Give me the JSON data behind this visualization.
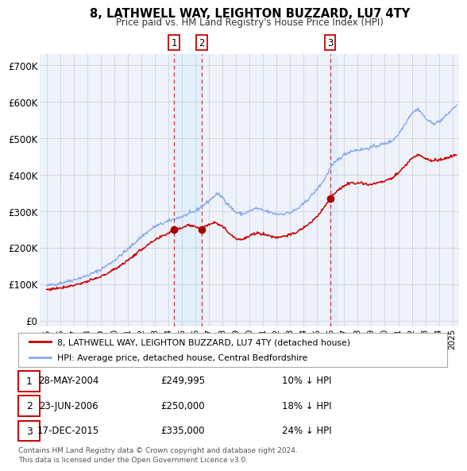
{
  "title": "8, LATHWELL WAY, LEIGHTON BUZZARD, LU7 4TY",
  "subtitle": "Price paid vs. HM Land Registry's House Price Index (HPI)",
  "transactions": [
    {
      "label": "1",
      "date_str": "28-MAY-2004",
      "date_x": 2004.41,
      "price": 249995,
      "hpi_pct": "10% ↓ HPI"
    },
    {
      "label": "2",
      "date_str": "23-JUN-2006",
      "date_x": 2006.48,
      "price": 250000,
      "hpi_pct": "18% ↓ HPI"
    },
    {
      "label": "3",
      "date_str": "17-DEC-2015",
      "date_x": 2015.96,
      "price": 335000,
      "hpi_pct": "24% ↓ HPI"
    }
  ],
  "legend_line1": "8, LATHWELL WAY, LEIGHTON BUZZARD, LU7 4TY (detached house)",
  "legend_line2": "HPI: Average price, detached house, Central Bedfordshire",
  "footer1": "Contains HM Land Registry data © Crown copyright and database right 2024.",
  "footer2": "This data is licensed under the Open Government Licence v3.0.",
  "yticks": [
    0,
    100000,
    200000,
    300000,
    400000,
    500000,
    600000,
    700000
  ],
  "ytick_labels": [
    "£0",
    "£100K",
    "£200K",
    "£300K",
    "£400K",
    "£500K",
    "£600K",
    "£700K"
  ],
  "xlim": [
    1994.5,
    2025.5
  ],
  "ylim": [
    -15000,
    730000
  ],
  "red_line_color": "#cc0000",
  "blue_line_color": "#88aaee",
  "shade_color": "#ddeeff",
  "marker_color": "#aa0000",
  "vline_color": "#dd3333",
  "grid_color": "#cccccc",
  "plot_bg": "#eef2fb",
  "box_label_color": "#cc0000"
}
